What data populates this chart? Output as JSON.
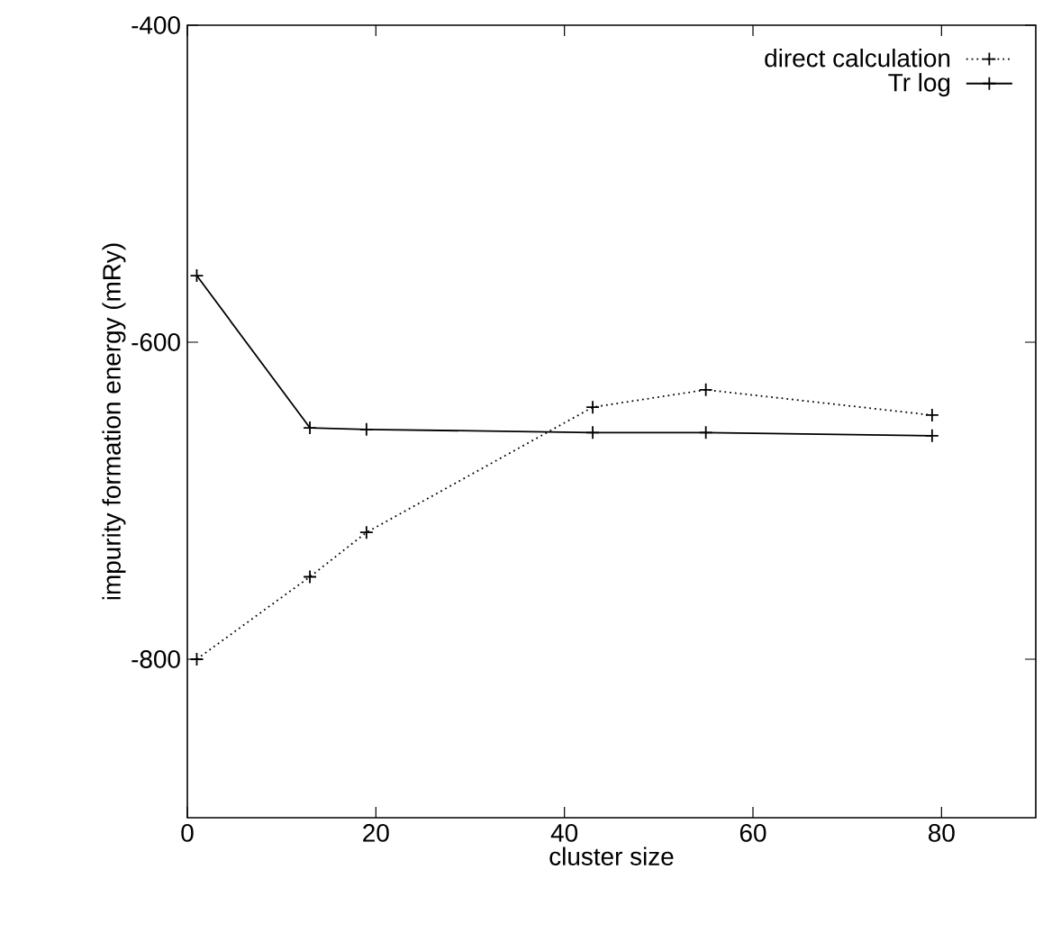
{
  "chart_data": {
    "type": "line",
    "xlabel": "cluster size",
    "ylabel": "impurity formation energy (mRy)",
    "xlim": [
      0,
      90
    ],
    "ylim": [
      -900,
      -400
    ],
    "xticks": [
      0,
      20,
      40,
      60,
      80
    ],
    "yticks": [
      -800,
      -600,
      -400
    ],
    "legend": "top right",
    "grid": false,
    "series": [
      {
        "name": "direct calculation",
        "color": "#000000",
        "marker": "cross",
        "line_style": "dotted",
        "x": [
          1,
          13,
          19,
          43,
          55,
          79
        ],
        "values": [
          -800,
          -748,
          -720,
          -641,
          -630,
          -646
        ]
      },
      {
        "name": "Tr log",
        "color": "#000000",
        "marker": "cross",
        "line_style": "solid",
        "x": [
          1,
          13,
          19,
          43,
          55,
          79
        ],
        "values": [
          -558,
          -654,
          -655,
          -657,
          -657,
          -659
        ]
      }
    ]
  }
}
